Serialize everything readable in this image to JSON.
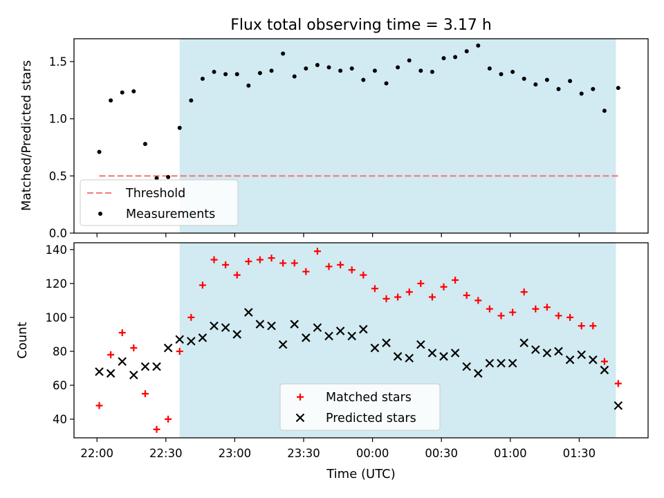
{
  "title": "Flux total observing time = 3.17 h",
  "colors": {
    "shade": "#add8e6",
    "threshold": "#f08080",
    "measurement": "#000000",
    "matched": "#ff0000",
    "predicted": "#000000"
  },
  "chart_data": [
    {
      "type": "scatter",
      "ylabel": "Matched/Predicted stars",
      "ylim": [
        0,
        1.7
      ],
      "yticks": [
        0,
        0.5,
        1.0,
        1.5
      ],
      "ytick_labels": [
        "0.0",
        "0.5",
        "1.0",
        "1.5"
      ],
      "shaded_span": [
        "22:36",
        "01:46"
      ],
      "threshold": {
        "name": "Threshold",
        "value": 0.5,
        "x_range": [
          "22:01",
          "01:47"
        ]
      },
      "legend_position": "lower-left",
      "series": [
        {
          "name": "Measurements",
          "marker": "dot",
          "x": [
            "22:01",
            "22:06",
            "22:11",
            "22:16",
            "22:21",
            "22:26",
            "22:31",
            "22:36",
            "22:41",
            "22:46",
            "22:51",
            "22:56",
            "23:01",
            "23:06",
            "23:11",
            "23:16",
            "23:21",
            "23:26",
            "23:31",
            "23:36",
            "23:41",
            "23:46",
            "23:51",
            "23:56",
            "00:01",
            "00:06",
            "00:11",
            "00:16",
            "00:21",
            "00:26",
            "00:31",
            "00:36",
            "00:41",
            "00:46",
            "00:51",
            "00:56",
            "01:01",
            "01:06",
            "01:11",
            "01:16",
            "01:21",
            "01:26",
            "01:31",
            "01:36",
            "01:41",
            "01:47"
          ],
          "y": [
            0.71,
            1.16,
            1.23,
            1.24,
            0.78,
            0.48,
            0.49,
            0.92,
            1.16,
            1.35,
            1.41,
            1.39,
            1.39,
            1.29,
            1.4,
            1.42,
            1.57,
            1.37,
            1.44,
            1.47,
            1.45,
            1.42,
            1.44,
            1.34,
            1.42,
            1.31,
            1.45,
            1.51,
            1.42,
            1.41,
            1.53,
            1.54,
            1.59,
            1.64,
            1.44,
            1.39,
            1.41,
            1.35,
            1.3,
            1.34,
            1.26,
            1.33,
            1.22,
            1.26,
            1.07,
            1.27
          ]
        }
      ]
    },
    {
      "type": "scatter",
      "ylabel": "Count",
      "xlabel": "Time (UTC)",
      "ylim": [
        29,
        144
      ],
      "yticks": [
        40,
        60,
        80,
        100,
        120,
        140
      ],
      "ytick_labels": [
        "40",
        "60",
        "80",
        "100",
        "120",
        "140"
      ],
      "xticks": [
        "22:00",
        "22:30",
        "23:00",
        "23:30",
        "00:00",
        "00:30",
        "01:00",
        "01:30"
      ],
      "xlim": [
        "21:50",
        "02:00"
      ],
      "shaded_span": [
        "22:36",
        "01:46"
      ],
      "legend_position": "lower-center",
      "series": [
        {
          "name": "Matched stars",
          "marker": "plus",
          "x": [
            "22:01",
            "22:06",
            "22:11",
            "22:16",
            "22:21",
            "22:26",
            "22:31",
            "22:36",
            "22:41",
            "22:46",
            "22:51",
            "22:56",
            "23:01",
            "23:06",
            "23:11",
            "23:16",
            "23:21",
            "23:26",
            "23:31",
            "23:36",
            "23:41",
            "23:46",
            "23:51",
            "23:56",
            "00:01",
            "00:06",
            "00:11",
            "00:16",
            "00:21",
            "00:26",
            "00:31",
            "00:36",
            "00:41",
            "00:46",
            "00:51",
            "00:56",
            "01:01",
            "01:06",
            "01:11",
            "01:16",
            "01:21",
            "01:26",
            "01:31",
            "01:36",
            "01:41",
            "01:47"
          ],
          "y": [
            48,
            78,
            91,
            82,
            55,
            34,
            40,
            80,
            100,
            119,
            134,
            131,
            125,
            133,
            134,
            135,
            132,
            132,
            127,
            139,
            130,
            131,
            128,
            125,
            117,
            111,
            112,
            115,
            120,
            112,
            118,
            122,
            113,
            110,
            105,
            101,
            103,
            115,
            105,
            106,
            101,
            100,
            95,
            95,
            74,
            61
          ]
        },
        {
          "name": "Predicted stars",
          "marker": "x",
          "x": [
            "22:01",
            "22:06",
            "22:11",
            "22:16",
            "22:21",
            "22:26",
            "22:31",
            "22:36",
            "22:41",
            "22:46",
            "22:51",
            "22:56",
            "23:01",
            "23:06",
            "23:11",
            "23:16",
            "23:21",
            "23:26",
            "23:31",
            "23:36",
            "23:41",
            "23:46",
            "23:51",
            "23:56",
            "00:01",
            "00:06",
            "00:11",
            "00:16",
            "00:21",
            "00:26",
            "00:31",
            "00:36",
            "00:41",
            "00:46",
            "00:51",
            "00:56",
            "01:01",
            "01:06",
            "01:11",
            "01:16",
            "01:21",
            "01:26",
            "01:31",
            "01:36",
            "01:41",
            "01:47"
          ],
          "y": [
            68,
            67,
            74,
            66,
            71,
            71,
            82,
            87,
            86,
            88,
            95,
            94,
            90,
            103,
            96,
            95,
            84,
            96,
            88,
            94,
            89,
            92,
            89,
            93,
            82,
            85,
            77,
            76,
            84,
            79,
            77,
            79,
            71,
            67,
            73,
            73,
            73,
            85,
            81,
            79,
            80,
            75,
            78,
            75,
            69,
            48
          ]
        }
      ]
    }
  ]
}
